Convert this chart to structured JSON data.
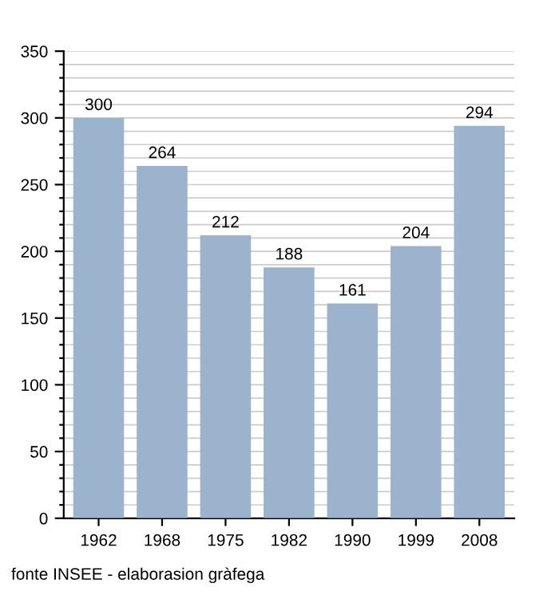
{
  "chart_data": {
    "type": "bar",
    "categories": [
      "1962",
      "1968",
      "1975",
      "1982",
      "1990",
      "1999",
      "2008"
    ],
    "values": [
      300,
      264,
      212,
      188,
      161,
      204,
      294
    ],
    "color": "#9bb3cc",
    "data_labels": true,
    "grid": "y",
    "legend": false,
    "ylim": [
      0,
      350
    ],
    "yticks": [
      0,
      {
        "value": 10,
        "label": null
      },
      {
        "value": 20,
        "label": null
      },
      {
        "value": 30,
        "label": null
      },
      {
        "value": 40,
        "label": null
      },
      50,
      {
        "value": 60,
        "label": null
      },
      {
        "value": 70,
        "label": null
      },
      {
        "value": 80,
        "label": null
      },
      {
        "value": 90,
        "label": null
      },
      100,
      {
        "value": 110,
        "label": null
      },
      {
        "value": 120,
        "label": null
      },
      {
        "value": 130,
        "label": null
      },
      {
        "value": 140,
        "label": null
      },
      150,
      {
        "value": 160,
        "label": null
      },
      {
        "value": 170,
        "label": null
      },
      {
        "value": 180,
        "label": null
      },
      {
        "value": 190,
        "label": null
      },
      200,
      {
        "value": 210,
        "label": null
      },
      {
        "value": 220,
        "label": null
      },
      {
        "value": 230,
        "label": null
      },
      {
        "value": 240,
        "label": null
      },
      250,
      {
        "value": 260,
        "label": null
      },
      {
        "value": 270,
        "label": null
      },
      {
        "value": 280,
        "label": null
      },
      {
        "value": 290,
        "label": null
      },
      300,
      {
        "value": 310,
        "label": null
      },
      {
        "value": 320,
        "label": null
      },
      {
        "value": 330,
        "label": null
      },
      {
        "value": 340,
        "label": null
      },
      350
    ],
    "annotations": [
      "fonte INSEE - elaborasion gràfega"
    ]
  }
}
